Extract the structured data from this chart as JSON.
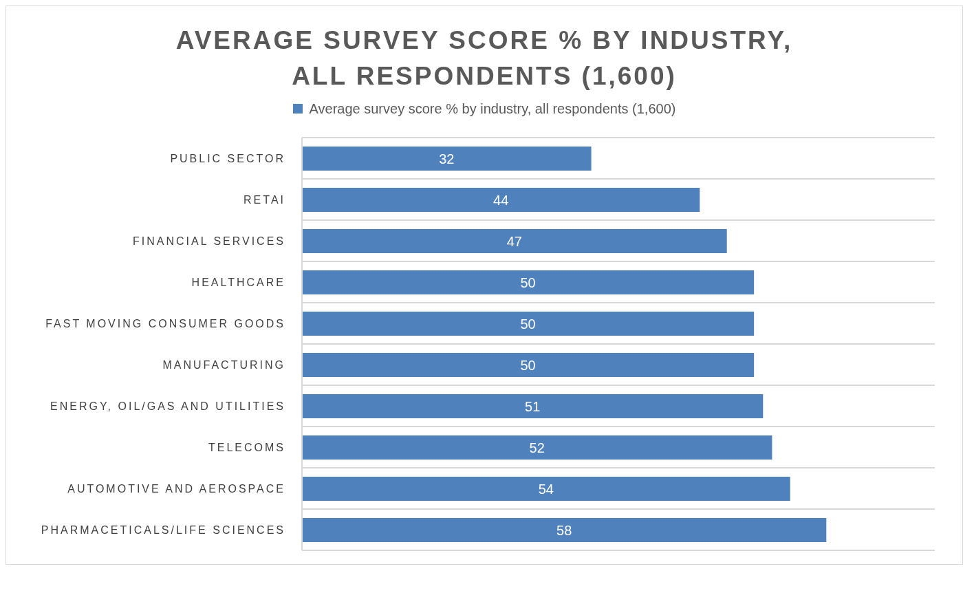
{
  "chart_data": {
    "type": "bar",
    "orientation": "horizontal",
    "title": "AVERAGE SURVEY SCORE % BY INDUSTRY, ALL RESPONDENTS (1,600)",
    "categories": [
      "PUBLIC SECTOR",
      "RETAI",
      "FINANCIAL SERVICES",
      "HEALTHCARE",
      "FAST MOVING CONSUMER GOODS",
      "MANUFACTURING",
      "ENERGY, OIL/GAS AND UTILITIES",
      "TELECOMS",
      "AUTOMOTIVE AND AEROSPACE",
      "PHARMACETICALS/LIFE SCIENCES"
    ],
    "series": [
      {
        "name": "Average survey score % by industry, all respondents (1,600)",
        "color": "#4f81bd",
        "values": [
          32,
          44,
          47,
          50,
          50,
          50,
          51,
          52,
          54,
          58
        ]
      }
    ],
    "xlim": [
      0,
      70
    ],
    "data_labels": true,
    "grid": "y",
    "legend": "top"
  }
}
